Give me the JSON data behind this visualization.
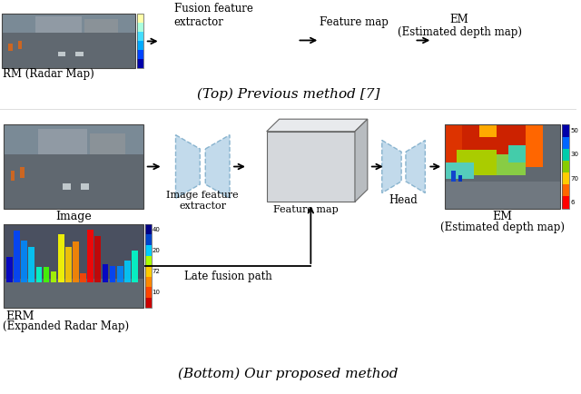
{
  "title_top": "(Top) Previous method [7]",
  "title_bottom": "(Bottom) Our proposed method",
  "top_rm_label": "RM (Radar Map)",
  "top_fusion_label": "Fusion feature\nextractor",
  "top_feature_label": "Feature map",
  "top_em_label1": "EM",
  "top_em_label2": "(Estimated depth map)",
  "bot_image_label": "Image",
  "bot_erm_label1": "ERM",
  "bot_erm_label2": "(Expanded Radar Map)",
  "bot_imgfeat_label": "Image feature\nextractor",
  "bot_feature_label": "Feature map",
  "bot_head_label": "Head",
  "bot_em_label1": "EM",
  "bot_em_label2": "(Estimated depth map)",
  "bot_latefusion_label": "Late fusion path",
  "bg_color": "#ffffff",
  "text_color": "#000000",
  "encoder_color": "#b8d4e8",
  "encoder_edge": "#7aaac8",
  "box3d_front": "#d5d8dc",
  "box3d_top": "#e8eaed",
  "box3d_right": "#b8bcc0",
  "arrow_color": "#000000",
  "font_size": 8.5,
  "title_font_size": 11
}
